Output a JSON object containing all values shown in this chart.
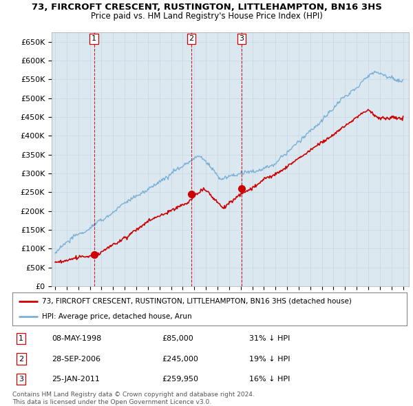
{
  "title": "73, FIRCROFT CRESCENT, RUSTINGTON, LITTLEHAMPTON, BN16 3HS",
  "subtitle": "Price paid vs. HM Land Registry's House Price Index (HPI)",
  "ylabel_ticks": [
    "£0",
    "£50K",
    "£100K",
    "£150K",
    "£200K",
    "£250K",
    "£300K",
    "£350K",
    "£400K",
    "£450K",
    "£500K",
    "£550K",
    "£600K",
    "£650K"
  ],
  "ytick_values": [
    0,
    50000,
    100000,
    150000,
    200000,
    250000,
    300000,
    350000,
    400000,
    450000,
    500000,
    550000,
    600000,
    650000
  ],
  "xmin": 1994.7,
  "xmax": 2025.5,
  "ymin": 0,
  "ymax": 675000,
  "sale_dates": [
    1998.36,
    2006.74,
    2011.07
  ],
  "sale_prices": [
    85000,
    245000,
    259950
  ],
  "sale_labels": [
    "1",
    "2",
    "3"
  ],
  "legend_house": "73, FIRCROFT CRESCENT, RUSTINGTON, LITTLEHAMPTON, BN16 3HS (detached house)",
  "legend_hpi": "HPI: Average price, detached house, Arun",
  "table_rows": [
    {
      "num": "1",
      "date": "08-MAY-1998",
      "price": "£85,000",
      "hpi": "31% ↓ HPI"
    },
    {
      "num": "2",
      "date": "28-SEP-2006",
      "price": "£245,000",
      "hpi": "19% ↓ HPI"
    },
    {
      "num": "3",
      "date": "25-JAN-2011",
      "price": "£259,950",
      "hpi": "16% ↓ HPI"
    }
  ],
  "copyright_text": "Contains HM Land Registry data © Crown copyright and database right 2024.\nThis data is licensed under the Open Government Licence v3.0.",
  "house_line_color": "#cc0000",
  "hpi_line_color": "#7ab0d4",
  "grid_color": "#c8d8e8",
  "plot_bg_color": "#dce8f0",
  "background_color": "#ffffff",
  "vline_color": "#cc0000",
  "marker_color": "#cc0000",
  "label_box_color": "#cc0000"
}
